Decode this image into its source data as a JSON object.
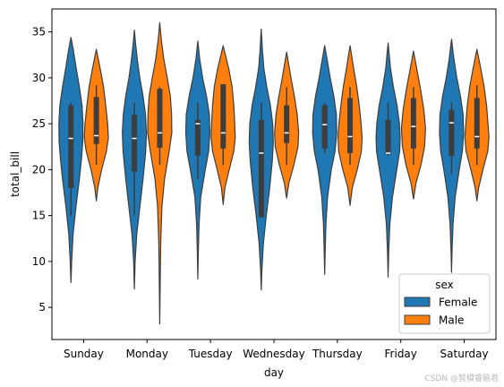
{
  "chart_data": {
    "type": "violin",
    "title": "",
    "xlabel": "day",
    "ylabel": "total_bill",
    "categories": [
      "Sunday",
      "Monday",
      "Tuesday",
      "Wednesday",
      "Thursday",
      "Friday",
      "Saturday"
    ],
    "ylim": [
      1.5,
      37.5
    ],
    "yticks": [
      5,
      10,
      15,
      20,
      25,
      30,
      35
    ],
    "grid": false,
    "legend": {
      "title": "sex",
      "placement": "lower-right"
    },
    "series": [
      {
        "name": "Female",
        "color": "#1f77b4",
        "violins": [
          {
            "min": 7.7,
            "max": 34.4,
            "q1": 18.0,
            "median": 23.4,
            "q3": 27.0,
            "whisker_low": 15.0,
            "whisker_high": 27.3,
            "profile": [
              [
                7.7,
                0.0
              ],
              [
                10,
                0.06
              ],
              [
                13,
                0.18
              ],
              [
                16,
                0.42
              ],
              [
                19,
                0.7
              ],
              [
                21,
                0.86
              ],
              [
                23,
                0.98
              ],
              [
                25,
                1.0
              ],
              [
                27,
                0.92
              ],
              [
                29,
                0.7
              ],
              [
                31,
                0.44
              ],
              [
                33,
                0.2
              ],
              [
                34.4,
                0.0
              ]
            ]
          },
          {
            "min": 7.0,
            "max": 35.2,
            "q1": 19.8,
            "median": 23.4,
            "q3": 26.0,
            "whisker_low": 15.0,
            "whisker_high": 27.3,
            "profile": [
              [
                7,
                0.0
              ],
              [
                10,
                0.06
              ],
              [
                13,
                0.2
              ],
              [
                16,
                0.46
              ],
              [
                19,
                0.72
              ],
              [
                22,
                0.94
              ],
              [
                24,
                1.0
              ],
              [
                26,
                0.92
              ],
              [
                28,
                0.72
              ],
              [
                30,
                0.45
              ],
              [
                32,
                0.24
              ],
              [
                34,
                0.08
              ],
              [
                35.2,
                0.0
              ]
            ]
          },
          {
            "min": 8.1,
            "max": 34.0,
            "q1": 21.5,
            "median": 25.0,
            "q3": 25.4,
            "whisker_low": 19.0,
            "whisker_high": 27.3,
            "profile": [
              [
                8.1,
                0.0
              ],
              [
                11,
                0.04
              ],
              [
                14,
                0.1
              ],
              [
                17,
                0.24
              ],
              [
                20,
                0.62
              ],
              [
                22,
                0.9
              ],
              [
                24,
                1.0
              ],
              [
                26,
                0.96
              ],
              [
                28,
                0.72
              ],
              [
                30,
                0.4
              ],
              [
                32,
                0.16
              ],
              [
                34,
                0.0
              ]
            ]
          },
          {
            "min": 6.9,
            "max": 35.3,
            "q1": 14.8,
            "median": 21.8,
            "q3": 25.4,
            "whisker_low": 14.8,
            "whisker_high": 27.3,
            "profile": [
              [
                6.9,
                0.0
              ],
              [
                9,
                0.05
              ],
              [
                12,
                0.18
              ],
              [
                15,
                0.42
              ],
              [
                18,
                0.7
              ],
              [
                21,
                0.92
              ],
              [
                23,
                1.0
              ],
              [
                25,
                0.95
              ],
              [
                27,
                0.76
              ],
              [
                29,
                0.46
              ],
              [
                31,
                0.22
              ],
              [
                33,
                0.1
              ],
              [
                35.3,
                0.0
              ]
            ]
          },
          {
            "min": 8.6,
            "max": 33.5,
            "q1": 22.3,
            "median": 24.9,
            "q3": 27.0,
            "whisker_low": 21.8,
            "whisker_high": 27.3,
            "profile": [
              [
                8.6,
                0.0
              ],
              [
                11,
                0.04
              ],
              [
                14,
                0.1
              ],
              [
                17,
                0.24
              ],
              [
                20,
                0.55
              ],
              [
                22,
                0.86
              ],
              [
                24,
                1.0
              ],
              [
                26,
                0.97
              ],
              [
                28,
                0.76
              ],
              [
                30,
                0.46
              ],
              [
                32,
                0.2
              ],
              [
                33.5,
                0.0
              ]
            ]
          },
          {
            "min": 8.3,
            "max": 33.8,
            "q1": 21.7,
            "median": 21.8,
            "q3": 25.4,
            "whisker_low": 21.5,
            "whisker_high": 27.3,
            "profile": [
              [
                8.3,
                0.0
              ],
              [
                11,
                0.05
              ],
              [
                14,
                0.14
              ],
              [
                17,
                0.36
              ],
              [
                20,
                0.72
              ],
              [
                22,
                0.96
              ],
              [
                23.5,
                1.0
              ],
              [
                25,
                0.94
              ],
              [
                27,
                0.74
              ],
              [
                29,
                0.44
              ],
              [
                31,
                0.2
              ],
              [
                33.8,
                0.0
              ]
            ]
          },
          {
            "min": 8.8,
            "max": 34.2,
            "q1": 21.5,
            "median": 25.1,
            "q3": 26.5,
            "whisker_low": 19.5,
            "whisker_high": 27.3,
            "profile": [
              [
                8.8,
                0.0
              ],
              [
                11,
                0.04
              ],
              [
                14,
                0.12
              ],
              [
                17,
                0.3
              ],
              [
                20,
                0.64
              ],
              [
                22,
                0.9
              ],
              [
                24,
                1.0
              ],
              [
                26,
                0.96
              ],
              [
                28,
                0.74
              ],
              [
                30,
                0.44
              ],
              [
                32,
                0.2
              ],
              [
                34.2,
                0.0
              ]
            ]
          }
        ]
      },
      {
        "name": "Male",
        "color": "#ff7f0e",
        "violins": [
          {
            "min": 16.6,
            "max": 33.1,
            "q1": 22.8,
            "median": 23.7,
            "q3": 27.9,
            "whisker_low": 20.5,
            "whisker_high": 29.2,
            "profile": [
              [
                16.6,
                0.0
              ],
              [
                18,
                0.12
              ],
              [
                20,
                0.44
              ],
              [
                22,
                0.84
              ],
              [
                23.5,
                1.0
              ],
              [
                25,
                0.94
              ],
              [
                27,
                0.78
              ],
              [
                29,
                0.6
              ],
              [
                31,
                0.32
              ],
              [
                33.1,
                0.0
              ]
            ]
          },
          {
            "min": 3.2,
            "max": 36.0,
            "q1": 22.4,
            "median": 24.0,
            "q3": 28.8,
            "whisker_low": 20.5,
            "whisker_high": 29.0,
            "profile": [
              [
                3.2,
                0.0
              ],
              [
                8,
                0.04
              ],
              [
                12,
                0.08
              ],
              [
                16,
                0.18
              ],
              [
                19,
                0.4
              ],
              [
                22,
                0.78
              ],
              [
                24,
                1.0
              ],
              [
                26,
                0.98
              ],
              [
                28,
                0.88
              ],
              [
                30,
                0.62
              ],
              [
                32,
                0.34
              ],
              [
                34,
                0.14
              ],
              [
                36,
                0.0
              ]
            ]
          },
          {
            "min": 16.2,
            "max": 33.5,
            "q1": 22.3,
            "median": 24.0,
            "q3": 29.3,
            "whisker_low": 20.5,
            "whisker_high": 29.3,
            "profile": [
              [
                16.2,
                0.0
              ],
              [
                18,
                0.14
              ],
              [
                20,
                0.5
              ],
              [
                22,
                0.88
              ],
              [
                23.5,
                1.0
              ],
              [
                25,
                0.96
              ],
              [
                27,
                0.88
              ],
              [
                29,
                0.74
              ],
              [
                31,
                0.46
              ],
              [
                33.5,
                0.0
              ]
            ]
          },
          {
            "min": 16.9,
            "max": 32.8,
            "q1": 22.9,
            "median": 24.0,
            "q3": 27.0,
            "whisker_low": 20.5,
            "whisker_high": 29.0,
            "profile": [
              [
                16.9,
                0.0
              ],
              [
                18.5,
                0.18
              ],
              [
                20.5,
                0.6
              ],
              [
                22.5,
                0.94
              ],
              [
                24,
                1.0
              ],
              [
                26,
                0.88
              ],
              [
                28,
                0.64
              ],
              [
                30,
                0.36
              ],
              [
                32.8,
                0.0
              ]
            ]
          },
          {
            "min": 16.1,
            "max": 33.5,
            "q1": 21.8,
            "median": 23.6,
            "q3": 27.8,
            "whisker_low": 20.5,
            "whisker_high": 29.0,
            "profile": [
              [
                16.1,
                0.0
              ],
              [
                18,
                0.18
              ],
              [
                20,
                0.6
              ],
              [
                22,
                0.94
              ],
              [
                23.5,
                1.0
              ],
              [
                25,
                0.92
              ],
              [
                27,
                0.76
              ],
              [
                29,
                0.56
              ],
              [
                31,
                0.3
              ],
              [
                33.5,
                0.0
              ]
            ]
          },
          {
            "min": 16.8,
            "max": 32.9,
            "q1": 22.3,
            "median": 24.7,
            "q3": 27.8,
            "whisker_low": 20.5,
            "whisker_high": 29.0,
            "profile": [
              [
                16.8,
                0.0
              ],
              [
                18.5,
                0.2
              ],
              [
                20.5,
                0.62
              ],
              [
                22.5,
                0.92
              ],
              [
                24.5,
                1.0
              ],
              [
                26.5,
                0.86
              ],
              [
                28.5,
                0.62
              ],
              [
                30.5,
                0.34
              ],
              [
                32.9,
                0.0
              ]
            ]
          },
          {
            "min": 16.6,
            "max": 33.1,
            "q1": 22.3,
            "median": 23.6,
            "q3": 27.8,
            "whisker_low": 20.5,
            "whisker_high": 29.2,
            "profile": [
              [
                16.6,
                0.0
              ],
              [
                18,
                0.14
              ],
              [
                20,
                0.5
              ],
              [
                22,
                0.9
              ],
              [
                23.5,
                1.0
              ],
              [
                25,
                0.92
              ],
              [
                27,
                0.8
              ],
              [
                29,
                0.6
              ],
              [
                31,
                0.32
              ],
              [
                33.1,
                0.0
              ]
            ]
          }
        ]
      }
    ]
  },
  "watermark": "CSDN @智模睿脑君"
}
